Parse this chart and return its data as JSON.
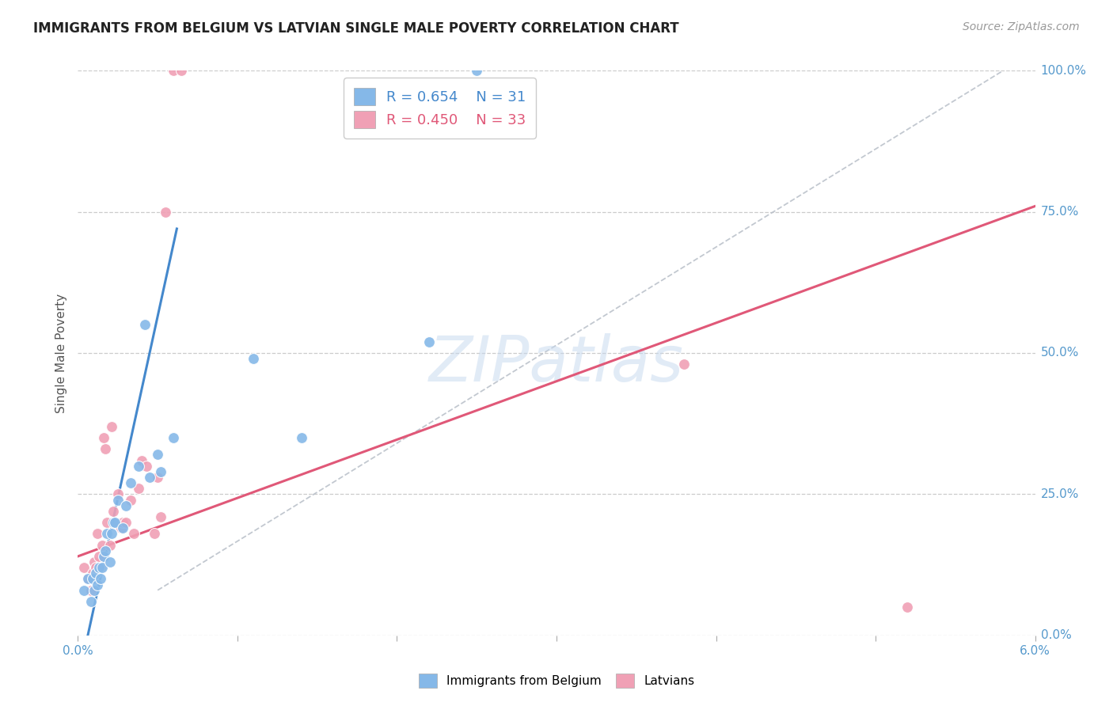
{
  "title": "IMMIGRANTS FROM BELGIUM VS LATVIAN SINGLE MALE POVERTY CORRELATION CHART",
  "source": "Source: ZipAtlas.com",
  "ylabel": "Single Male Poverty",
  "ytick_labels": [
    "0.0%",
    "25.0%",
    "50.0%",
    "75.0%",
    "100.0%"
  ],
  "ytick_values": [
    0,
    25,
    50,
    75,
    100
  ],
  "xmin": 0.0,
  "xmax": 6.0,
  "ymin": 0,
  "ymax": 100,
  "legend_blue_r": "R = 0.654",
  "legend_blue_n": "N = 31",
  "legend_pink_r": "R = 0.450",
  "legend_pink_n": "N = 33",
  "blue_label": "Immigrants from Belgium",
  "pink_label": "Latvians",
  "color_blue": "#85b8e8",
  "color_pink": "#f0a0b5",
  "color_blue_line": "#4488cc",
  "color_pink_line": "#e05878",
  "color_diag": "#b8bfc8",
  "title_color": "#222222",
  "axis_label_color": "#5599cc",
  "legend_r_color_blue": "#4488cc",
  "legend_r_color_pink": "#e05878",
  "blue_x": [
    0.04,
    0.06,
    0.08,
    0.09,
    0.1,
    0.11,
    0.12,
    0.13,
    0.14,
    0.15,
    0.16,
    0.17,
    0.18,
    0.2,
    0.21,
    0.22,
    0.23,
    0.25,
    0.28,
    0.3,
    0.33,
    0.38,
    0.42,
    0.45,
    0.5,
    0.52,
    0.6,
    1.1,
    1.4,
    2.2,
    2.5
  ],
  "blue_y": [
    8,
    10,
    6,
    10,
    8,
    11,
    9,
    12,
    10,
    12,
    14,
    15,
    18,
    13,
    18,
    20,
    20,
    24,
    19,
    23,
    27,
    30,
    55,
    28,
    32,
    29,
    35,
    49,
    35,
    52,
    100
  ],
  "pink_x": [
    0.04,
    0.06,
    0.08,
    0.09,
    0.1,
    0.11,
    0.12,
    0.13,
    0.14,
    0.15,
    0.16,
    0.17,
    0.18,
    0.2,
    0.21,
    0.22,
    0.25,
    0.27,
    0.28,
    0.3,
    0.33,
    0.35,
    0.38,
    0.4,
    0.43,
    0.48,
    0.5,
    0.52,
    0.55,
    0.6,
    0.65,
    3.8,
    5.2
  ],
  "pink_y": [
    12,
    10,
    8,
    11,
    13,
    12,
    18,
    14,
    12,
    16,
    35,
    33,
    20,
    16,
    37,
    22,
    25,
    19,
    20,
    20,
    24,
    18,
    26,
    31,
    30,
    18,
    28,
    21,
    75,
    100,
    100,
    48,
    5
  ],
  "blue_line_x": [
    0.0,
    0.62
  ],
  "blue_line_y": [
    -8,
    72
  ],
  "pink_line_x": [
    0.0,
    6.0
  ],
  "pink_line_y": [
    14,
    76
  ],
  "diag_line_x": [
    0.5,
    5.8
  ],
  "diag_line_y": [
    8,
    100
  ],
  "watermark": "ZIPatlas",
  "marker_size": 100
}
